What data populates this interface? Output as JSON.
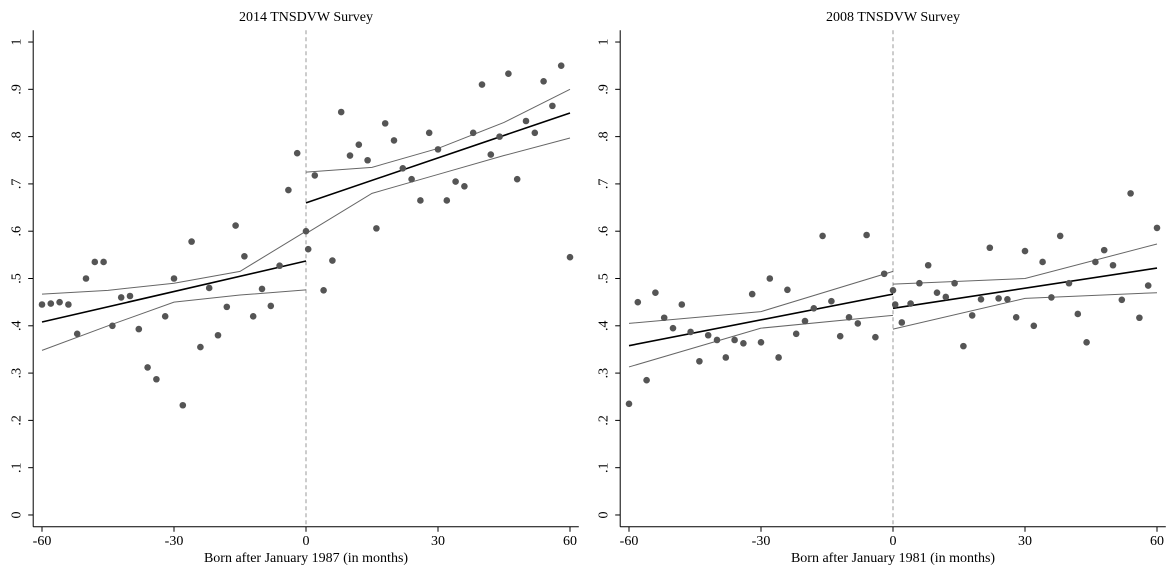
{
  "chart_data": [
    {
      "type": "scatter",
      "title": "2014 TNSDVW Survey",
      "xlabel": "Born after January 1987 (in months)",
      "xlim": [
        -62,
        62
      ],
      "ylim": [
        -0.025,
        1.025
      ],
      "xticks": [
        -60,
        -30,
        0,
        30,
        60
      ],
      "yticks": [
        0,
        {
          "value": 0.1,
          "label": ".1"
        },
        {
          "value": 0.2,
          "label": ".2"
        },
        {
          "value": 0.3,
          "label": ".3"
        },
        {
          "value": 0.4,
          "label": ".4"
        },
        {
          "value": 0.5,
          "label": ".5"
        },
        {
          "value": 0.6,
          "label": ".6"
        },
        {
          "value": 0.7,
          "label": ".7"
        },
        {
          "value": 0.8,
          "label": ".8"
        },
        {
          "value": 0.9,
          "label": ".9"
        },
        1
      ],
      "cutoff": 0,
      "color": "#555555",
      "x": [
        -60,
        -58,
        -56,
        -54,
        -52,
        -50,
        -48,
        -46,
        -44,
        -42,
        -40,
        -38,
        -36,
        -34,
        -32,
        -30,
        -28,
        -26,
        -24,
        -22,
        -20,
        -18,
        -16,
        -14,
        -12,
        -10,
        -8,
        -6,
        -4,
        -2,
        0,
        0.5,
        2,
        4,
        6,
        8,
        10,
        12,
        14,
        16,
        18,
        20,
        22,
        24,
        26,
        28,
        30,
        32,
        34,
        36,
        38,
        40,
        42,
        44,
        46,
        48,
        50,
        52,
        54,
        56,
        58,
        60
      ],
      "values": [
        0.445,
        0.447,
        0.45,
        0.445,
        0.383,
        0.5,
        0.535,
        0.535,
        0.4,
        0.46,
        0.463,
        0.393,
        0.312,
        0.287,
        0.42,
        0.5,
        0.232,
        0.578,
        0.355,
        0.48,
        0.38,
        0.44,
        0.612,
        0.547,
        0.42,
        0.478,
        0.442,
        0.527,
        0.687,
        0.765,
        0.6,
        0.562,
        0.718,
        0.475,
        0.538,
        0.852,
        0.76,
        0.783,
        0.75,
        0.606,
        0.828,
        0.792,
        0.733,
        0.71,
        0.665,
        0.808,
        0.773,
        0.665,
        0.705,
        0.695,
        0.808,
        0.91,
        0.762,
        0.8,
        0.933,
        0.71,
        0.833,
        0.808,
        0.917,
        0.865,
        0.95,
        0.545
      ],
      "fits": [
        {
          "color": "#000000",
          "x": [
            -60,
            0
          ],
          "values": [
            0.408,
            0.537
          ]
        },
        {
          "color": "#000000",
          "x": [
            0,
            60
          ],
          "values": [
            0.66,
            0.85
          ]
        },
        {
          "color": "#666666",
          "x": [
            -60,
            -45,
            -30,
            -15,
            0
          ],
          "values": [
            0.467,
            0.475,
            0.49,
            0.515,
            0.6
          ]
        },
        {
          "color": "#666666",
          "x": [
            -60,
            -45,
            -30,
            -15,
            0
          ],
          "values": [
            0.348,
            0.4,
            0.45,
            0.465,
            0.476
          ]
        },
        {
          "color": "#666666",
          "x": [
            0,
            15,
            30,
            45,
            60
          ],
          "values": [
            0.725,
            0.735,
            0.775,
            0.83,
            0.9
          ]
        },
        {
          "color": "#666666",
          "x": [
            0,
            15,
            30,
            45,
            60
          ],
          "values": [
            0.595,
            0.68,
            0.72,
            0.76,
            0.797
          ]
        }
      ]
    },
    {
      "type": "scatter",
      "title": "2008 TNSDVW Survey",
      "xlabel": "Born after January 1981 (in months)",
      "xlim": [
        -62,
        62
      ],
      "ylim": [
        -0.025,
        1.025
      ],
      "xticks": [
        -60,
        -30,
        0,
        30,
        60
      ],
      "yticks": [
        0,
        {
          "value": 0.1,
          "label": ".1"
        },
        {
          "value": 0.2,
          "label": ".2"
        },
        {
          "value": 0.3,
          "label": ".3"
        },
        {
          "value": 0.4,
          "label": ".4"
        },
        {
          "value": 0.5,
          "label": ".5"
        },
        {
          "value": 0.6,
          "label": ".6"
        },
        {
          "value": 0.7,
          "label": ".7"
        },
        {
          "value": 0.8,
          "label": ".8"
        },
        {
          "value": 0.9,
          "label": ".9"
        },
        1
      ],
      "cutoff": 0,
      "color": "#555555",
      "x": [
        -60,
        -58,
        -56,
        -54,
        -52,
        -50,
        -48,
        -46,
        -44,
        -42,
        -40,
        -38,
        -36,
        -34,
        -32,
        -30,
        -28,
        -26,
        -24,
        -22,
        -20,
        -18,
        -16,
        -14,
        -12,
        -10,
        -8,
        -6,
        -4,
        -2,
        0,
        0.5,
        2,
        4,
        6,
        8,
        10,
        12,
        14,
        16,
        18,
        20,
        22,
        24,
        26,
        28,
        30,
        32,
        34,
        36,
        38,
        40,
        42,
        44,
        46,
        48,
        50,
        52,
        54,
        56,
        58,
        60
      ],
      "values": [
        0.235,
        0.45,
        0.285,
        0.47,
        0.417,
        0.395,
        0.445,
        0.387,
        0.325,
        0.38,
        0.37,
        0.333,
        0.37,
        0.363,
        0.467,
        0.365,
        0.5,
        0.333,
        0.476,
        0.383,
        0.41,
        0.437,
        0.59,
        0.452,
        0.378,
        0.418,
        0.405,
        0.592,
        0.376,
        0.51,
        0.475,
        0.445,
        0.407,
        0.447,
        0.49,
        0.528,
        0.47,
        0.461,
        0.49,
        0.357,
        0.422,
        0.456,
        0.565,
        0.458,
        0.456,
        0.418,
        0.558,
        0.4,
        0.535,
        0.46,
        0.59,
        0.49,
        0.425,
        0.365,
        0.535,
        0.56,
        0.528,
        0.455,
        0.68,
        0.417,
        0.485,
        0.607
      ],
      "fits": [
        {
          "color": "#000000",
          "x": [
            -60,
            0
          ],
          "values": [
            0.358,
            0.467
          ]
        },
        {
          "color": "#000000",
          "x": [
            0,
            60
          ],
          "values": [
            0.437,
            0.522
          ]
        },
        {
          "color": "#666666",
          "x": [
            -60,
            -30,
            0
          ],
          "values": [
            0.405,
            0.43,
            0.515
          ]
        },
        {
          "color": "#666666",
          "x": [
            -60,
            -30,
            0
          ],
          "values": [
            0.313,
            0.395,
            0.422
          ]
        },
        {
          "color": "#666666",
          "x": [
            0,
            30,
            60
          ],
          "values": [
            0.488,
            0.5,
            0.573
          ]
        },
        {
          "color": "#666666",
          "x": [
            0,
            30,
            60
          ],
          "values": [
            0.393,
            0.458,
            0.47
          ]
        }
      ]
    }
  ]
}
